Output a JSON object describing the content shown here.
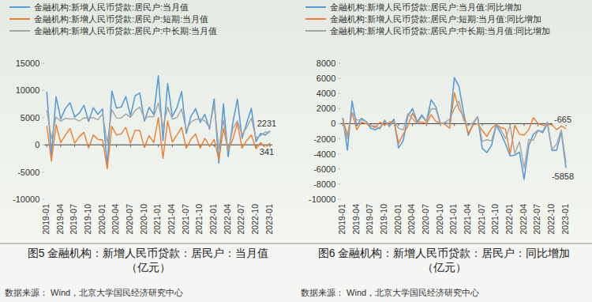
{
  "chart_data": [
    {
      "type": "line",
      "title": "图5 金融机构：新增人民币贷款：居民户：当月值（亿元）",
      "source": "数据来源： Wind，北京大学国民经济研究中心",
      "categories": [
        "2019-01",
        null,
        null,
        "2019-04",
        null,
        null,
        "2019-07",
        null,
        null,
        "2019-10",
        null,
        null,
        "2020-01",
        null,
        null,
        "2020-04",
        null,
        null,
        "2020-07",
        null,
        null,
        "2020-10",
        null,
        null,
        "2021-01",
        null,
        null,
        "2021-04",
        null,
        null,
        "2021-07",
        null,
        null,
        "2021-10",
        null,
        null,
        "2022-01",
        null,
        null,
        "2022-04",
        null,
        null,
        "2022-07",
        null,
        null,
        "2022-10",
        null,
        null,
        "2023-01"
      ],
      "series": [
        {
          "name": "金融机构:新增人民币贷款:居民户:当月值",
          "color": "#5b9bd5",
          "values": [
            9808,
            -1872,
            8829,
            4727,
            6690,
            7730,
            5100,
            5855,
            7274,
            4274,
            6812,
            5600,
            6600,
            -4100,
            9871,
            6739,
            6923,
            8885,
            5355,
            9030,
            9535,
            4320,
            6897,
            5576,
            12700,
            800,
            11300,
            5210,
            6836,
            9800,
            2100,
            5203,
            6662,
            4150,
            5600,
            2900,
            8430,
            -3369,
            7534,
            -2170,
            3967,
            8400,
            1217,
            4005,
            6700,
            600,
            2100,
            1800,
            2572
          ]
        },
        {
          "name": "金融机构:新增人民币贷款:居民户:短期:当月值",
          "color": "#ed7d31",
          "values": [
            3480,
            -3000,
            3700,
            400,
            1800,
            3000,
            300,
            1500,
            2300,
            -600,
            1800,
            1000,
            900,
            -4400,
            3400,
            1800,
            2000,
            3200,
            300,
            2700,
            2600,
            -500,
            1700,
            400,
            5000,
            -2500,
            4400,
            500,
            1800,
            3200,
            -600,
            1000,
            2000,
            -600,
            1200,
            -300,
            1006,
            -2700,
            3000,
            -1000,
            1000,
            4000,
            -600,
            800,
            1800,
            -700,
            400,
            -600,
            341
          ]
        },
        {
          "name": "金融机构:新增人民币贷款:居民户:中长期:当月值",
          "color": "#a5a5a5",
          "values": [
            6328,
            1128,
            5129,
            4327,
            4890,
            4730,
            4800,
            4355,
            4974,
            4874,
            5012,
            4600,
            5700,
            300,
            6471,
            4939,
            4923,
            5685,
            5055,
            6330,
            6935,
            4820,
            5197,
            5176,
            7700,
            3300,
            6900,
            4710,
            5036,
            6600,
            2700,
            4203,
            4662,
            4750,
            4400,
            3200,
            7424,
            -669,
            4534,
            -1170,
            2967,
            4400,
            1817,
            3205,
            4900,
            1300,
            1700,
            2400,
            2231
          ]
        }
      ],
      "annotations": [
        {
          "text": "2231",
          "x": "2023-01",
          "y": 2231
        },
        {
          "text": "341",
          "x": "2023-01",
          "y": 341
        }
      ],
      "ylim": [
        -10000,
        15000
      ],
      "yticks": [
        -10000,
        -5000,
        0,
        5000,
        10000,
        15000
      ],
      "grid": false,
      "legend": "top"
    },
    {
      "type": "line",
      "title": "图6 金融机构：新增人民币贷款：居民户：同比增加（亿元）",
      "source": "数据来源： Wind，北京大学国民经济研究中心",
      "categories": [
        "2019-01",
        null,
        null,
        "2019-04",
        null,
        null,
        "2019-07",
        null,
        null,
        "2019-10",
        null,
        null,
        "2020-01",
        null,
        null,
        "2020-04",
        null,
        null,
        "2020-07",
        null,
        null,
        "2020-10",
        null,
        null,
        "2021-01",
        null,
        null,
        "2021-04",
        null,
        null,
        "2021-07",
        null,
        null,
        "2021-10",
        null,
        null,
        "2022-01",
        null,
        null,
        "2022-04",
        null,
        null,
        "2022-07",
        null,
        null,
        "2022-10",
        null,
        null,
        "2023-01"
      ],
      "series": [
        {
          "name": "金融机构:新增人民币贷款:居民户:当月值:同比增加",
          "color": "#5b9bd5",
          "values": [
            800,
            -3500,
            3000,
            -300,
            700,
            300,
            -600,
            -800,
            -500,
            300,
            -200,
            600,
            -3208,
            -2228,
            1042,
            2012,
            233,
            1155,
            255,
            3175,
            2261,
            46,
            85,
            -24,
            6100,
            4900,
            1429,
            -1529,
            -87,
            915,
            -3255,
            -3827,
            -2873,
            -170,
            -1297,
            -2676,
            -4270,
            -4169,
            -3766,
            -7380,
            -2869,
            -1400,
            -883,
            -1198,
            38,
            -3550,
            -3500,
            -1100,
            -5858
          ]
        },
        {
          "name": "金融机构:新增人民币贷款:居民户:短期:当月值:同比增加",
          "color": "#ed7d31",
          "values": [
            600,
            -1500,
            1500,
            -800,
            200,
            0,
            -300,
            -500,
            200,
            -200,
            200,
            300,
            -2580,
            -1400,
            -300,
            1400,
            200,
            200,
            0,
            1200,
            300,
            100,
            -100,
            -600,
            4100,
            1900,
            1000,
            -1300,
            -200,
            0,
            -900,
            -1700,
            -600,
            -100,
            -500,
            -700,
            -3994,
            -200,
            -1400,
            -1500,
            -800,
            800,
            0,
            -200,
            -200,
            -100,
            -800,
            -300,
            -665
          ]
        },
        {
          "name": "金融机构:新增人民币贷款:居民户:中长期:当月值:同比增加",
          "color": "#a5a5a5",
          "values": [
            200,
            -2000,
            1500,
            500,
            500,
            300,
            -300,
            -300,
            -700,
            500,
            -400,
            300,
            -628,
            -828,
            1342,
            612,
            33,
            955,
            255,
            1975,
            1961,
            -54,
            185,
            576,
            2000,
            3000,
            429,
            -229,
            113,
            915,
            -2355,
            -2127,
            -2273,
            -70,
            -797,
            -1976,
            -276,
            -3969,
            -2366,
            -5880,
            -2069,
            -2200,
            -883,
            -998,
            238,
            -3450,
            -2700,
            -800,
            -5193
          ]
        }
      ],
      "annotations": [
        {
          "text": "-665",
          "x": "2023-01",
          "y": -665
        },
        {
          "text": "-5858",
          "x": "2023-01",
          "y": -5858
        }
      ],
      "ylim": [
        -10000,
        8000
      ],
      "yticks": [
        -10000,
        -8000,
        -6000,
        -4000,
        -2000,
        0,
        2000,
        4000,
        6000,
        8000
      ],
      "grid": false,
      "legend": "top"
    }
  ]
}
